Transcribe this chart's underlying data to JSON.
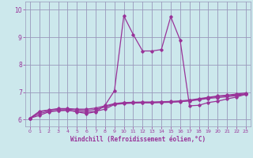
{
  "xlabel": "Windchill (Refroidissement éolien,°C)",
  "xlim": [
    -0.5,
    23.5
  ],
  "ylim": [
    5.75,
    10.3
  ],
  "yticks": [
    6,
    7,
    8,
    9,
    10
  ],
  "xticks": [
    0,
    1,
    2,
    3,
    4,
    5,
    6,
    7,
    8,
    9,
    10,
    11,
    12,
    13,
    14,
    15,
    16,
    17,
    18,
    19,
    20,
    21,
    22,
    23
  ],
  "bg_color": "#cce8ec",
  "line_color": "#993399",
  "grid_color": "#9999bb",
  "lines": [
    [
      6.05,
      6.15,
      6.28,
      6.32,
      6.35,
      6.28,
      6.22,
      6.28,
      6.52,
      7.05,
      9.78,
      9.1,
      8.5,
      8.5,
      8.55,
      9.75,
      8.9,
      6.5,
      6.52,
      6.62,
      6.67,
      6.75,
      6.82,
      6.92
    ],
    [
      6.05,
      6.28,
      6.34,
      6.38,
      6.38,
      6.35,
      6.33,
      6.37,
      6.46,
      6.56,
      6.6,
      6.61,
      6.62,
      6.62,
      6.63,
      6.64,
      6.66,
      6.69,
      6.74,
      6.79,
      6.84,
      6.87,
      6.9,
      6.94
    ],
    [
      6.05,
      6.22,
      6.3,
      6.33,
      6.33,
      6.3,
      6.27,
      6.3,
      6.38,
      6.55,
      6.58,
      6.6,
      6.61,
      6.61,
      6.62,
      6.63,
      6.65,
      6.68,
      6.72,
      6.77,
      6.8,
      6.83,
      6.87,
      6.92
    ],
    [
      6.05,
      6.3,
      6.35,
      6.4,
      6.4,
      6.38,
      6.38,
      6.42,
      6.5,
      6.58,
      6.62,
      6.63,
      6.64,
      6.64,
      6.65,
      6.66,
      6.68,
      6.71,
      6.76,
      6.81,
      6.86,
      6.89,
      6.93,
      6.97
    ]
  ]
}
